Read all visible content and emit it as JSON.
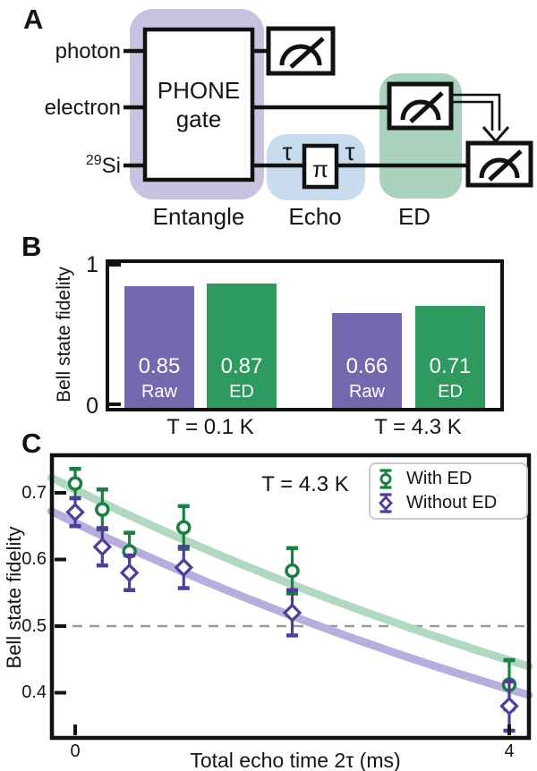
{
  "panelA": {
    "label": "A",
    "wires": [
      {
        "label": "photon"
      },
      {
        "label": "electron"
      },
      {
        "sup": "29",
        "label": "Si"
      }
    ],
    "gate_line1": "PHONE",
    "gate_line2": "gate",
    "tau_left": "τ",
    "pi": "π",
    "tau_right": "τ",
    "sections": [
      {
        "label": "Entangle",
        "color": "#c9c2e0"
      },
      {
        "label": "Echo",
        "color": "#c8dcee"
      },
      {
        "label": "ED",
        "color": "#a9d2bc"
      }
    ],
    "icons": {
      "measurement": "gauge-dial-icon",
      "arrow": "feed-forward-arrow-icon"
    }
  },
  "panelB": {
    "label": "B"
  },
  "panelC": {
    "label": "C"
  },
  "chart_data": [
    {
      "panel": "B",
      "type": "bar",
      "ylabel": "Bell state fidelity",
      "yticks": [
        0,
        1
      ],
      "ylim": [
        0,
        1.06
      ],
      "value_label_color": "#ffffff",
      "groups": [
        {
          "label": "T = 0.1 K",
          "bars": [
            {
              "name": "Raw",
              "value": 0.85,
              "color": "#7568ae"
            },
            {
              "name": "ED",
              "value": 0.87,
              "color": "#2f9a5f"
            }
          ]
        },
        {
          "label": "T = 4.3 K",
          "bars": [
            {
              "name": "Raw",
              "value": 0.66,
              "color": "#7568ae"
            },
            {
              "name": "ED",
              "value": 0.71,
              "color": "#2f9a5f"
            }
          ]
        }
      ]
    },
    {
      "panel": "C",
      "type": "scatter",
      "xlabel": "Total echo time 2τ (ms)",
      "ylabel": "Bell state fidelity",
      "annotation": "T = 4.3 K",
      "xticks": [
        0,
        4
      ],
      "yticks": [
        0.4,
        0.5,
        0.6,
        0.7
      ],
      "xlim": [
        -0.22,
        4.18
      ],
      "ylim": [
        0.332,
        0.756
      ],
      "reference_line_y": 0.5,
      "legend_position": "upper right",
      "series": [
        {
          "name": "With ED",
          "marker": "circle",
          "color": "#17813f",
          "fit_color": "#b2d8c2",
          "fit": {
            "form": "A*exp(-k*t)",
            "A": 0.705,
            "k": 0.113
          },
          "x": [
            0,
            0.25,
            0.5,
            1.0,
            2.0,
            4.0
          ],
          "y": [
            0.714,
            0.675,
            0.612,
            0.648,
            0.583,
            0.412
          ],
          "yerr": [
            0.022,
            0.03,
            0.028,
            0.032,
            0.034,
            0.037
          ]
        },
        {
          "name": "Without ED",
          "marker": "diamond",
          "color": "#4d3e9a",
          "fit_color": "#b7aede",
          "fit": {
            "form": "A*exp(-k*t)",
            "A": 0.655,
            "k": 0.12
          },
          "x": [
            0,
            0.25,
            0.5,
            1.0,
            2.0,
            4.0
          ],
          "y": [
            0.671,
            0.619,
            0.58,
            0.588,
            0.52,
            0.38
          ],
          "yerr": [
            0.021,
            0.028,
            0.026,
            0.031,
            0.034,
            0.037
          ]
        }
      ]
    }
  ]
}
